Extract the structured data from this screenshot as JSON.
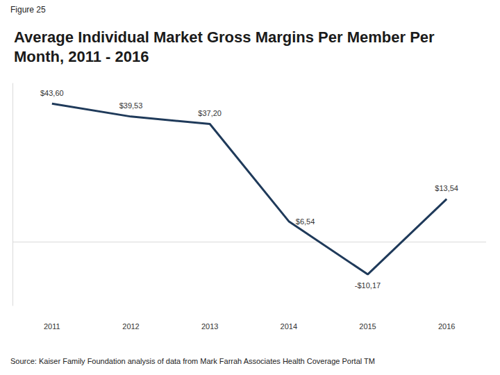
{
  "chart_data": {
    "type": "line",
    "title": "Average Individual Market Gross Margins Per Member Per Month, 2011 - 2016",
    "annotations": [
      "Figure 25",
      "Source: Kaiser Family Foundation analysis of data from Mark Farrah Associates Health Coverage Portal TM"
    ],
    "categories": [
      "2011",
      "2012",
      "2013",
      "2014",
      "2015",
      "2016"
    ],
    "values": [
      43.6,
      39.53,
      37.2,
      6.54,
      -10.17,
      13.54
    ],
    "value_labels": [
      "$43,60",
      "$39,53",
      "$37,20",
      "$6,54",
      "-$10,17",
      "$13,54"
    ],
    "color": "#1f3a5a",
    "marker": "none",
    "ylim": [
      -20,
      50
    ],
    "yticks": [
      0
    ],
    "grid": true,
    "data_labels": true,
    "tick_labels": "x"
  }
}
